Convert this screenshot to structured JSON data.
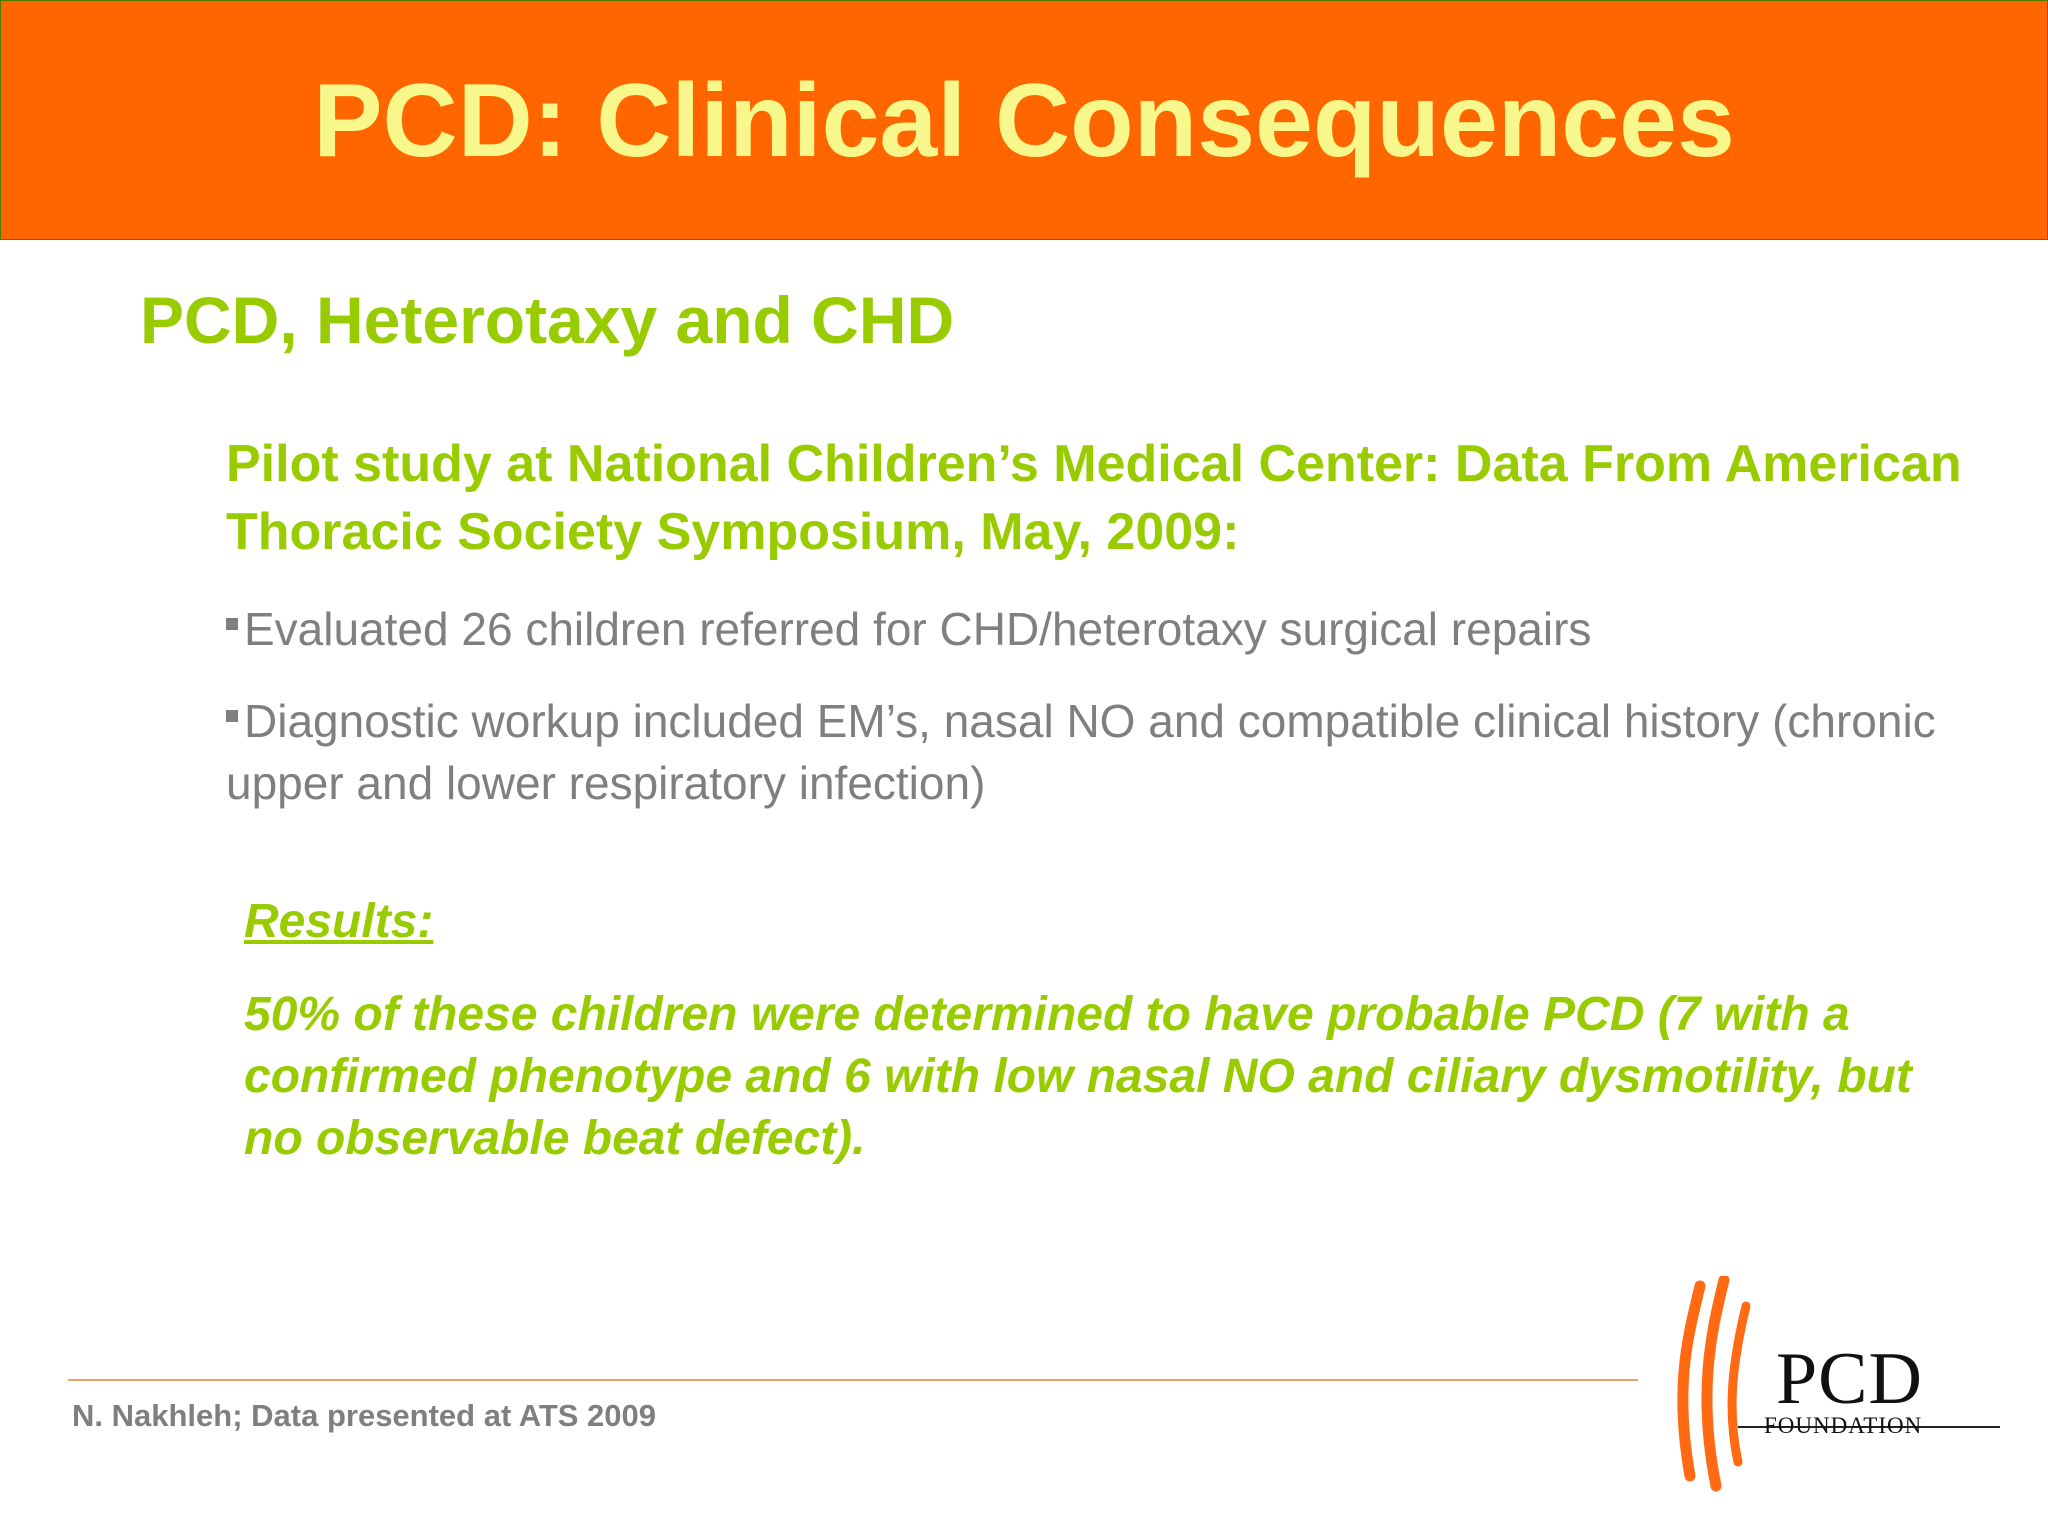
{
  "slide": {
    "title": "PCD: Clinical Consequences",
    "subtitle": "PCD, Heterotaxy and CHD",
    "pilot_heading": "Pilot study at National Children’s Medical Center: Data From American Thoracic Society Symposium, May, 2009:",
    "bullets": [
      "Evaluated 26 children referred for CHD/heterotaxy surgical repairs",
      "Diagnostic workup included EM’s, nasal NO and compatible clinical history (chronic upper and lower respiratory infection)"
    ],
    "results_label": "Results:",
    "results_text": "50% of these children were determined to have probable PCD (7 with a confirmed phenotype and 6 with low nasal NO and ciliary dysmotility, but no observable beat defect).",
    "footer": "N. Nakhleh; Data presented at ATS 2009"
  },
  "logo": {
    "name": "PCD",
    "sub": "FOUNDATION",
    "stroke_color": "#ff6a13"
  },
  "colors": {
    "header_bg": "#ff6600",
    "title": "#f7f78b",
    "accent_green": "#99cc00",
    "body_gray": "#7f7f7f"
  }
}
